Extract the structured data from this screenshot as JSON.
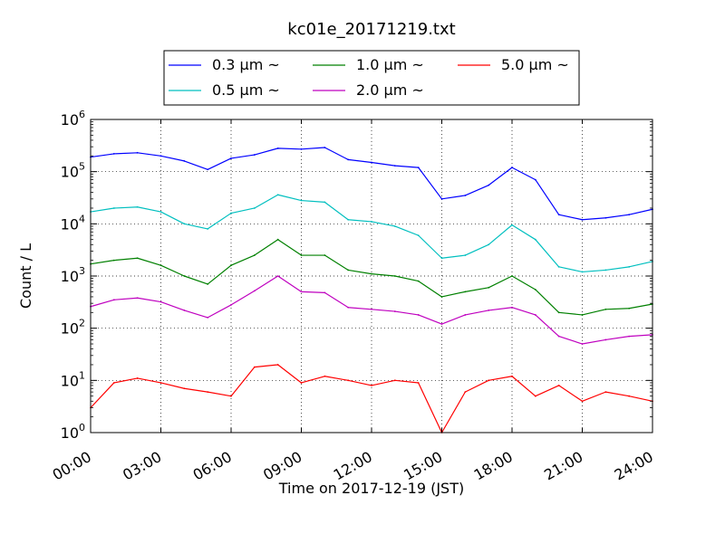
{
  "chart_data": {
    "type": "line",
    "title": "kc01e_20171219.txt",
    "xlabel": "Time on 2017-12-19 (JST)",
    "ylabel": "Count / L",
    "yscale": "log",
    "ylim": [
      1,
      1000000
    ],
    "xlim_hours": [
      0,
      24
    ],
    "grid": true,
    "legend_placement": "top-center",
    "x_ticks": [
      {
        "hour": 0,
        "label": "00:00"
      },
      {
        "hour": 3,
        "label": "03:00"
      },
      {
        "hour": 6,
        "label": "06:00"
      },
      {
        "hour": 9,
        "label": "09:00"
      },
      {
        "hour": 12,
        "label": "12:00"
      },
      {
        "hour": 15,
        "label": "15:00"
      },
      {
        "hour": 18,
        "label": "18:00"
      },
      {
        "hour": 21,
        "label": "21:00"
      },
      {
        "hour": 24,
        "label": "24:00"
      }
    ],
    "y_ticks": [
      {
        "value": 1,
        "base": "10",
        "exp": "0"
      },
      {
        "value": 10,
        "base": "10",
        "exp": "1"
      },
      {
        "value": 100,
        "base": "10",
        "exp": "2"
      },
      {
        "value": 1000,
        "base": "10",
        "exp": "3"
      },
      {
        "value": 10000,
        "base": "10",
        "exp": "4"
      },
      {
        "value": 100000,
        "base": "10",
        "exp": "5"
      },
      {
        "value": 1000000,
        "base": "10",
        "exp": "6"
      }
    ],
    "x_hours": [
      0,
      1,
      2,
      3,
      4,
      5,
      6,
      7,
      8,
      9,
      10,
      11,
      12,
      13,
      14,
      15,
      16,
      17,
      18,
      19,
      20,
      21,
      22,
      23,
      24
    ],
    "series": [
      {
        "name": "0.3 μm ~",
        "color": "#0000ff",
        "values": [
          190000,
          220000,
          230000,
          200000,
          160000,
          110000,
          180000,
          210000,
          280000,
          270000,
          290000,
          170000,
          150000,
          130000,
          120000,
          30000,
          35000,
          55000,
          120000,
          70000,
          15000,
          12000,
          13000,
          15000,
          19000
        ]
      },
      {
        "name": "0.5 μm ~",
        "color": "#00bfbf",
        "values": [
          17000,
          20000,
          21000,
          17000,
          10000,
          8000,
          16000,
          20000,
          36000,
          28000,
          26000,
          12000,
          11000,
          9000,
          6000,
          2200,
          2500,
          4000,
          9500,
          5000,
          1500,
          1200,
          1300,
          1500,
          1900
        ]
      },
      {
        "name": "1.0 μm ~",
        "color": "#008000",
        "values": [
          1700,
          2000,
          2200,
          1600,
          1000,
          700,
          1600,
          2500,
          5000,
          2500,
          2500,
          1300,
          1100,
          1000,
          800,
          400,
          500,
          600,
          1000,
          550,
          200,
          180,
          230,
          240,
          290
        ]
      },
      {
        "name": "2.0 μm ~",
        "color": "#bf00bf",
        "values": [
          260,
          350,
          380,
          320,
          220,
          160,
          280,
          520,
          1000,
          500,
          480,
          250,
          230,
          210,
          180,
          120,
          180,
          220,
          250,
          180,
          70,
          50,
          60,
          70,
          75
        ]
      },
      {
        "name": "5.0 μm ~",
        "color": "#ff0000",
        "values": [
          3,
          9,
          11,
          9,
          7,
          6,
          5,
          18,
          20,
          9,
          12,
          10,
          8,
          10,
          9,
          1,
          6,
          10,
          12,
          5,
          8,
          4,
          6,
          5,
          4
        ]
      }
    ]
  }
}
